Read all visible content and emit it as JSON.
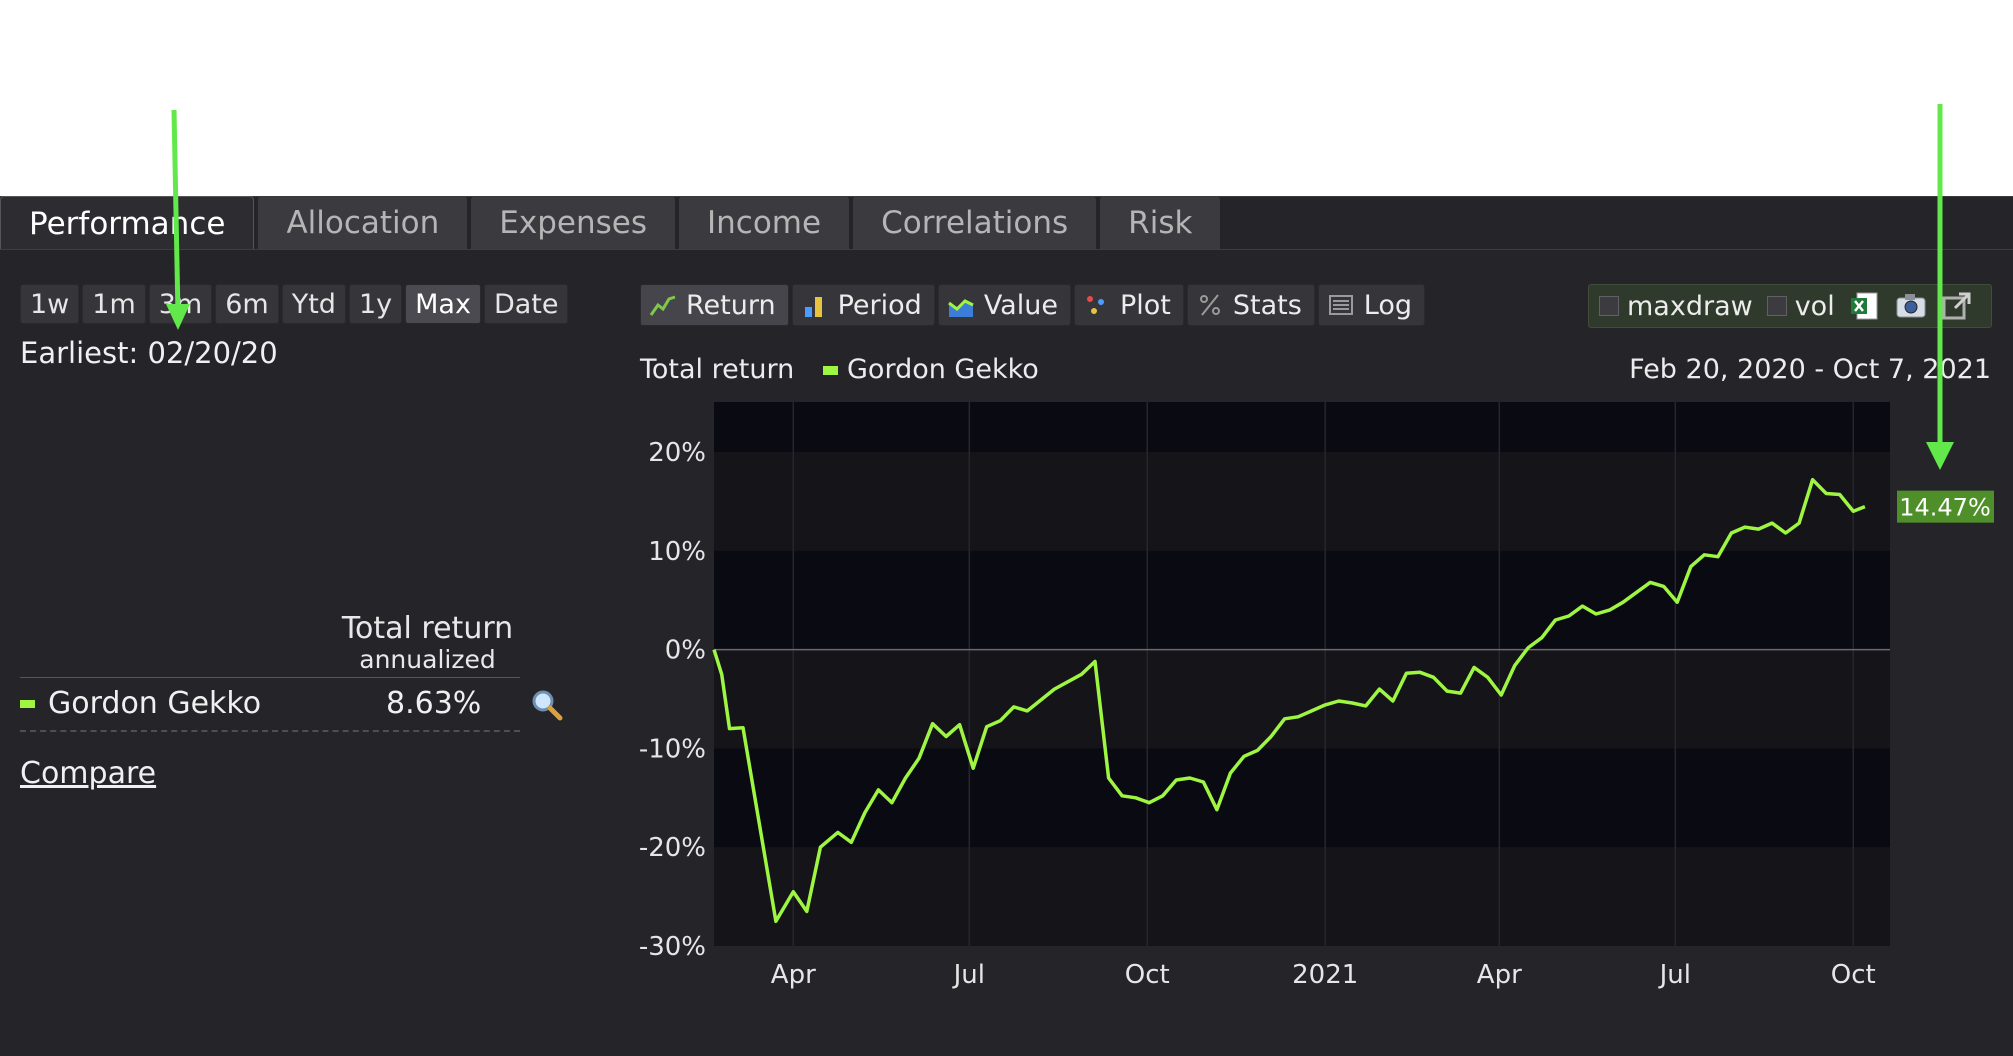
{
  "tabs": [
    {
      "label": "Performance",
      "active": true
    },
    {
      "label": "Allocation"
    },
    {
      "label": "Expenses"
    },
    {
      "label": "Income"
    },
    {
      "label": "Correlations"
    },
    {
      "label": "Risk"
    }
  ],
  "ranges": [
    "1w",
    "1m",
    "3m",
    "6m",
    "Ytd",
    "1y",
    "Max",
    "Date"
  ],
  "active_range": "Max",
  "earliest": "Earliest: 02/20/20",
  "summary": {
    "col_title": "Total return",
    "col_sub": "annualized",
    "name": "Gordon Gekko",
    "value": "8.63%",
    "compare": "Compare"
  },
  "views": [
    {
      "label": "Return",
      "icon": "return-line-icon",
      "active": true
    },
    {
      "label": "Period",
      "icon": "period-bar-icon"
    },
    {
      "label": "Value",
      "icon": "value-area-icon"
    },
    {
      "label": "Plot",
      "icon": "plot-dots-icon"
    },
    {
      "label": "Stats",
      "icon": "stats-percent-icon"
    },
    {
      "label": "Log",
      "icon": "log-list-icon"
    }
  ],
  "options": {
    "maxdraw": "maxdraw",
    "vol": "vol"
  },
  "chart_header": {
    "title": "Total return",
    "legend": "Gordon Gekko",
    "range": "Feb 20, 2020 - Oct 7, 2021"
  },
  "colors": {
    "series": "#9ef542",
    "arrow": "#62e84a",
    "end_label_bg": "#4f8f2a"
  },
  "chart_data": {
    "type": "line",
    "ylim": [
      -30,
      20
    ],
    "y_ticks": [
      "20%",
      "10%",
      "0%",
      "-10%",
      "-20%",
      "-30%"
    ],
    "x_ticks": [
      "Apr",
      "Jul",
      "Oct",
      "2021",
      "Apr",
      "Jul",
      "Oct"
    ],
    "end_label": "14.47%",
    "series": [
      {
        "name": "Gordon Gekko",
        "values": [
          [
            "2020-02-20",
            0
          ],
          [
            "2020-02-24",
            -2.5
          ],
          [
            "2020-02-28",
            -8
          ],
          [
            "2020-03-06",
            -7.9
          ],
          [
            "2020-03-13",
            -16
          ],
          [
            "2020-03-23",
            -27.5
          ],
          [
            "2020-04-01",
            -24.5
          ],
          [
            "2020-04-08",
            -26.5
          ],
          [
            "2020-04-15",
            -20
          ],
          [
            "2020-04-24",
            -18.5
          ],
          [
            "2020-05-01",
            -19.5
          ],
          [
            "2020-05-08",
            -16.5
          ],
          [
            "2020-05-15",
            -14.2
          ],
          [
            "2020-05-22",
            -15.5
          ],
          [
            "2020-05-29",
            -13
          ],
          [
            "2020-06-05",
            -11
          ],
          [
            "2020-06-12",
            -7.5
          ],
          [
            "2020-06-19",
            -8.8
          ],
          [
            "2020-06-26",
            -7.6
          ],
          [
            "2020-07-03",
            -12
          ],
          [
            "2020-07-10",
            -7.8
          ],
          [
            "2020-07-17",
            -7.2
          ],
          [
            "2020-07-24",
            -5.8
          ],
          [
            "2020-07-31",
            -6.2
          ],
          [
            "2020-08-14",
            -4
          ],
          [
            "2020-08-28",
            -2.5
          ],
          [
            "2020-09-04",
            -1.2
          ],
          [
            "2020-09-11",
            -13
          ],
          [
            "2020-09-18",
            -14.8
          ],
          [
            "2020-09-25",
            -15
          ],
          [
            "2020-10-02",
            -15.5
          ],
          [
            "2020-10-09",
            -14.8
          ],
          [
            "2020-10-16",
            -13.2
          ],
          [
            "2020-10-23",
            -13
          ],
          [
            "2020-10-30",
            -13.4
          ],
          [
            "2020-11-06",
            -16.2
          ],
          [
            "2020-11-13",
            -12.5
          ],
          [
            "2020-11-20",
            -10.8
          ],
          [
            "2020-11-27",
            -10.2
          ],
          [
            "2020-12-04",
            -8.8
          ],
          [
            "2020-12-11",
            -7
          ],
          [
            "2020-12-18",
            -6.8
          ],
          [
            "2020-12-25",
            -6.2
          ],
          [
            "2021-01-01",
            -5.6
          ],
          [
            "2021-01-08",
            -5.2
          ],
          [
            "2021-01-15",
            -5.4
          ],
          [
            "2021-01-22",
            -5.7
          ],
          [
            "2021-01-29",
            -4
          ],
          [
            "2021-02-05",
            -5.2
          ],
          [
            "2021-02-12",
            -2.4
          ],
          [
            "2021-02-19",
            -2.3
          ],
          [
            "2021-02-26",
            -2.8
          ],
          [
            "2021-03-05",
            -4.2
          ],
          [
            "2021-03-12",
            -4.4
          ],
          [
            "2021-03-19",
            -1.8
          ],
          [
            "2021-03-26",
            -2.8
          ],
          [
            "2021-04-02",
            -4.6
          ],
          [
            "2021-04-09",
            -1.6
          ],
          [
            "2021-04-16",
            0.2
          ],
          [
            "2021-04-23",
            1.2
          ],
          [
            "2021-04-30",
            3
          ],
          [
            "2021-05-07",
            3.4
          ],
          [
            "2021-05-14",
            4.4
          ],
          [
            "2021-05-21",
            3.6
          ],
          [
            "2021-05-28",
            4
          ],
          [
            "2021-06-04",
            4.8
          ],
          [
            "2021-06-11",
            5.8
          ],
          [
            "2021-06-18",
            6.8
          ],
          [
            "2021-06-25",
            6.4
          ],
          [
            "2021-07-02",
            4.8
          ],
          [
            "2021-07-09",
            8.4
          ],
          [
            "2021-07-16",
            9.6
          ],
          [
            "2021-07-23",
            9.4
          ],
          [
            "2021-07-30",
            11.8
          ],
          [
            "2021-08-06",
            12.4
          ],
          [
            "2021-08-13",
            12.2
          ],
          [
            "2021-08-20",
            12.8
          ],
          [
            "2021-08-27",
            11.8
          ],
          [
            "2021-09-03",
            12.8
          ],
          [
            "2021-09-10",
            17.2
          ],
          [
            "2021-09-17",
            15.8
          ],
          [
            "2021-09-24",
            15.7
          ],
          [
            "2021-10-01",
            14
          ],
          [
            "2021-10-07",
            14.47
          ]
        ]
      }
    ]
  }
}
